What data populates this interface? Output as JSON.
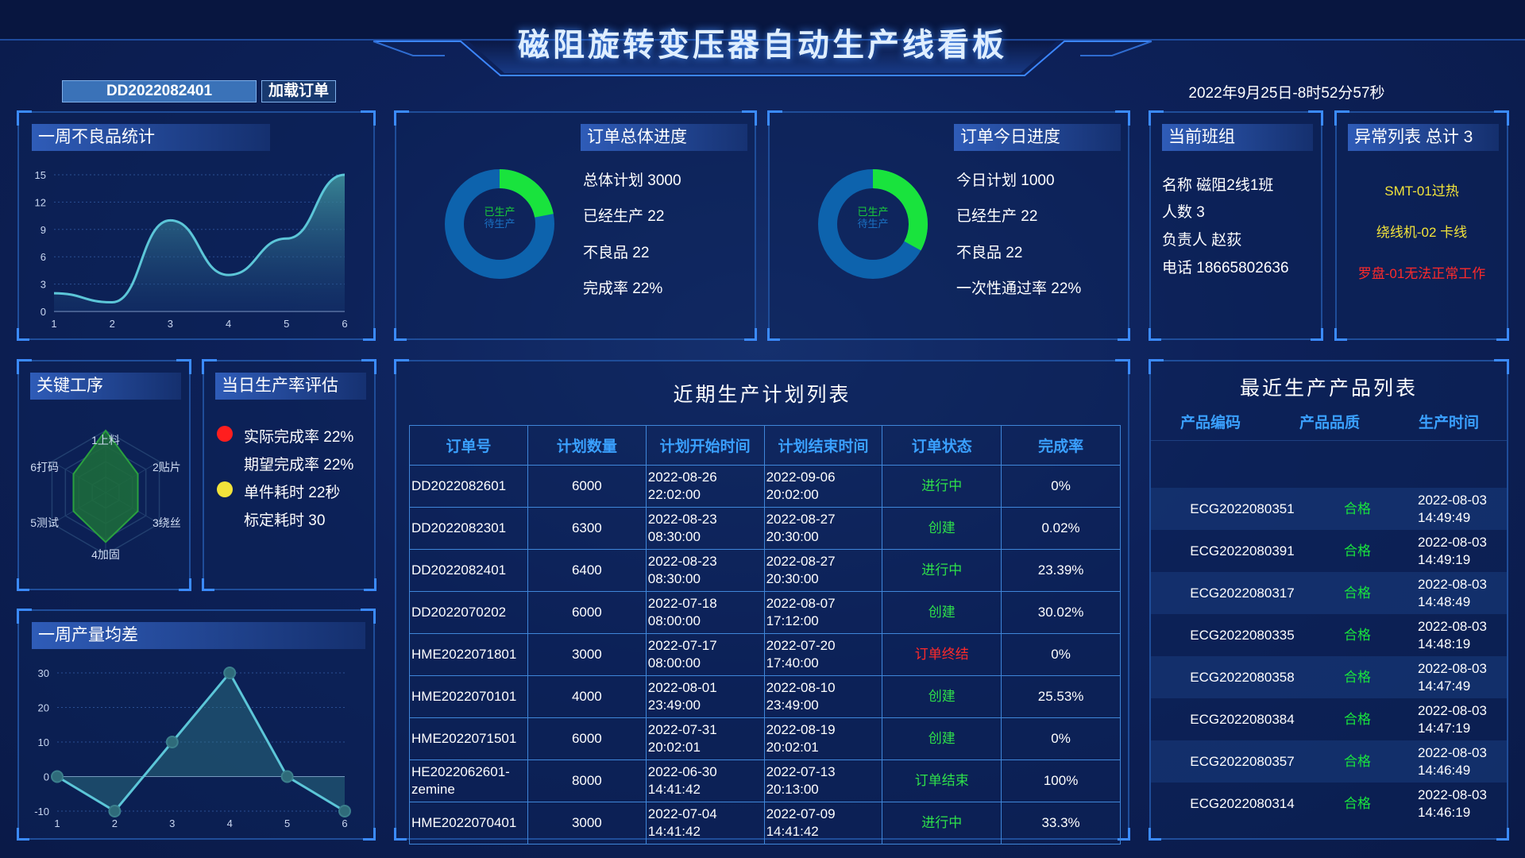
{
  "title": "磁阻旋转变压器自动生产线看板",
  "order_input": "DD2022082401",
  "load_button": "加载订单",
  "datetime": "2022年9月25日-8时52分57秒",
  "defect_week": {
    "title": "一周不良品统计",
    "chart_data": {
      "type": "area",
      "x": [
        1,
        2,
        3,
        4,
        5,
        6
      ],
      "values": [
        2,
        1,
        10,
        4,
        8,
        15
      ],
      "ylim": [
        0,
        15
      ],
      "yticks": [
        0,
        3,
        6,
        9,
        12,
        15
      ]
    }
  },
  "order_total": {
    "title": "订单总体进度",
    "donut_produced": "已生产",
    "donut_pending": "待生产",
    "progress": 0.22,
    "plan": "总体计划 3000",
    "produced": "已经生产 22",
    "defects": "不良品 22",
    "rate": "完成率 22%"
  },
  "order_today": {
    "title": "订单今日进度",
    "donut_produced": "已生产",
    "donut_pending": "待生产",
    "progress": 0.33,
    "plan": "今日计划 1000",
    "produced": "已经生产 22",
    "defects": "不良品 22",
    "rate": "一次性通过率 22%"
  },
  "team": {
    "title": "当前班组",
    "name": "名称 磁阻2线1班",
    "count": "人数 3",
    "leader": "负责人 赵荻",
    "phone": "电话 18665802636"
  },
  "exceptions": {
    "title": "异常列表 总计 3",
    "items": [
      {
        "text": "SMT-01过热",
        "color": "#f2e33a"
      },
      {
        "text": "绕线机-02 卡线",
        "color": "#f2e33a"
      },
      {
        "text": "罗盘-01无法正常工作",
        "color": "#ff2a2a"
      }
    ]
  },
  "key_process": {
    "title": "关键工序",
    "labels": [
      "1上料",
      "2贴片",
      "3绕丝",
      "4加固",
      "5测试",
      "6打码"
    ],
    "chart_data": {
      "type": "radar",
      "categories": [
        "1上料",
        "2贴片",
        "3绕丝",
        "4加固",
        "5测试",
        "6打码"
      ],
      "values": [
        1.0,
        0.6,
        0.6,
        0.8,
        0.6,
        0.6
      ]
    }
  },
  "daily_rate": {
    "title": "当日生产率评估",
    "actual": "实际完成率 22%",
    "expected": "期望完成率 22%",
    "unit_time": "单件耗时 22秒",
    "standard_time": "标定耗时 30",
    "dot_red": "#ff1e1e",
    "dot_yellow": "#f2e33a"
  },
  "output_variance": {
    "title": "一周产量均差",
    "chart_data": {
      "type": "line",
      "x": [
        1,
        2,
        3,
        4,
        5,
        6
      ],
      "values": [
        0,
        -10,
        10,
        30,
        0,
        -10
      ],
      "ylim": [
        -10,
        30
      ],
      "yticks": [
        -10,
        0,
        10,
        20,
        30
      ]
    }
  },
  "plan_list": {
    "title": "近期生产计划列表",
    "headers": [
      "订单号",
      "计划数量",
      "计划开始时间",
      "计划结束时间",
      "订单状态",
      "完成率"
    ],
    "rows": [
      {
        "order": "DD2022082601",
        "qty": "6000",
        "start": "2022-08-26 22:02:00",
        "end": "2022-09-06 20:02:00",
        "status": "进行中",
        "status_color": "#2ee04a",
        "rate": "0%"
      },
      {
        "order": "DD2022082301",
        "qty": "6300",
        "start": "2022-08-23 08:30:00",
        "end": "2022-08-27 20:30:00",
        "status": "创建",
        "status_color": "#2ee04a",
        "rate": "0.02%"
      },
      {
        "order": "DD2022082401",
        "qty": "6400",
        "start": "2022-08-23 08:30:00",
        "end": "2022-08-27 20:30:00",
        "status": "进行中",
        "status_color": "#2ee04a",
        "rate": "23.39%"
      },
      {
        "order": "DD2022070202",
        "qty": "6000",
        "start": "2022-07-18 08:00:00",
        "end": "2022-08-07 17:12:00",
        "status": "创建",
        "status_color": "#2ee04a",
        "rate": "30.02%"
      },
      {
        "order": "HME2022071801",
        "qty": "3000",
        "start": "2022-07-17 08:00:00",
        "end": "2022-07-20 17:40:00",
        "status": "订单终结",
        "status_color": "#ff2a2a",
        "rate": "0%"
      },
      {
        "order": "HME2022070101",
        "qty": "4000",
        "start": "2022-08-01 23:49:00",
        "end": "2022-08-10 23:49:00",
        "status": "创建",
        "status_color": "#2ee04a",
        "rate": "25.53%"
      },
      {
        "order": "HME2022071501",
        "qty": "6000",
        "start": "2022-07-31 20:02:01",
        "end": "2022-08-19 20:02:01",
        "status": "创建",
        "status_color": "#2ee04a",
        "rate": "0%"
      },
      {
        "order": "HE2022062601-zemine",
        "qty": "8000",
        "start": "2022-06-30 14:41:42",
        "end": "2022-07-13 20:13:00",
        "status": "订单结束",
        "status_color": "#2ee04a",
        "rate": "100%"
      },
      {
        "order": "HME2022070401",
        "qty": "3000",
        "start": "2022-07-04 14:41:42",
        "end": "2022-07-09 14:41:42",
        "status": "进行中",
        "status_color": "#2ee04a",
        "rate": "33.3%"
      }
    ]
  },
  "products": {
    "title": "最近生产产品列表",
    "headers": [
      "产品编码",
      "产品品质",
      "生产时间"
    ],
    "rows": [
      {
        "code": "ECG2022080351",
        "quality": "合格",
        "time": "2022-08-03 14:49:49"
      },
      {
        "code": "ECG2022080391",
        "quality": "合格",
        "time": "2022-08-03 14:49:19"
      },
      {
        "code": "ECG2022080317",
        "quality": "合格",
        "time": "2022-08-03 14:48:49"
      },
      {
        "code": "ECG2022080335",
        "quality": "合格",
        "time": "2022-08-03 14:48:19"
      },
      {
        "code": "ECG2022080358",
        "quality": "合格",
        "time": "2022-08-03 14:47:49"
      },
      {
        "code": "ECG2022080384",
        "quality": "合格",
        "time": "2022-08-03 14:47:19"
      },
      {
        "code": "ECG2022080357",
        "quality": "合格",
        "time": "2022-08-03 14:46:49"
      },
      {
        "code": "ECG2022080314",
        "quality": "合格",
        "time": "2022-08-03 14:46:19"
      }
    ]
  },
  "colors": {
    "accent_green": "#19e33d",
    "donut_blue": "#0d63ad",
    "line_cyan": "#5cc6d8",
    "header_blue": "#3aa0ff"
  }
}
